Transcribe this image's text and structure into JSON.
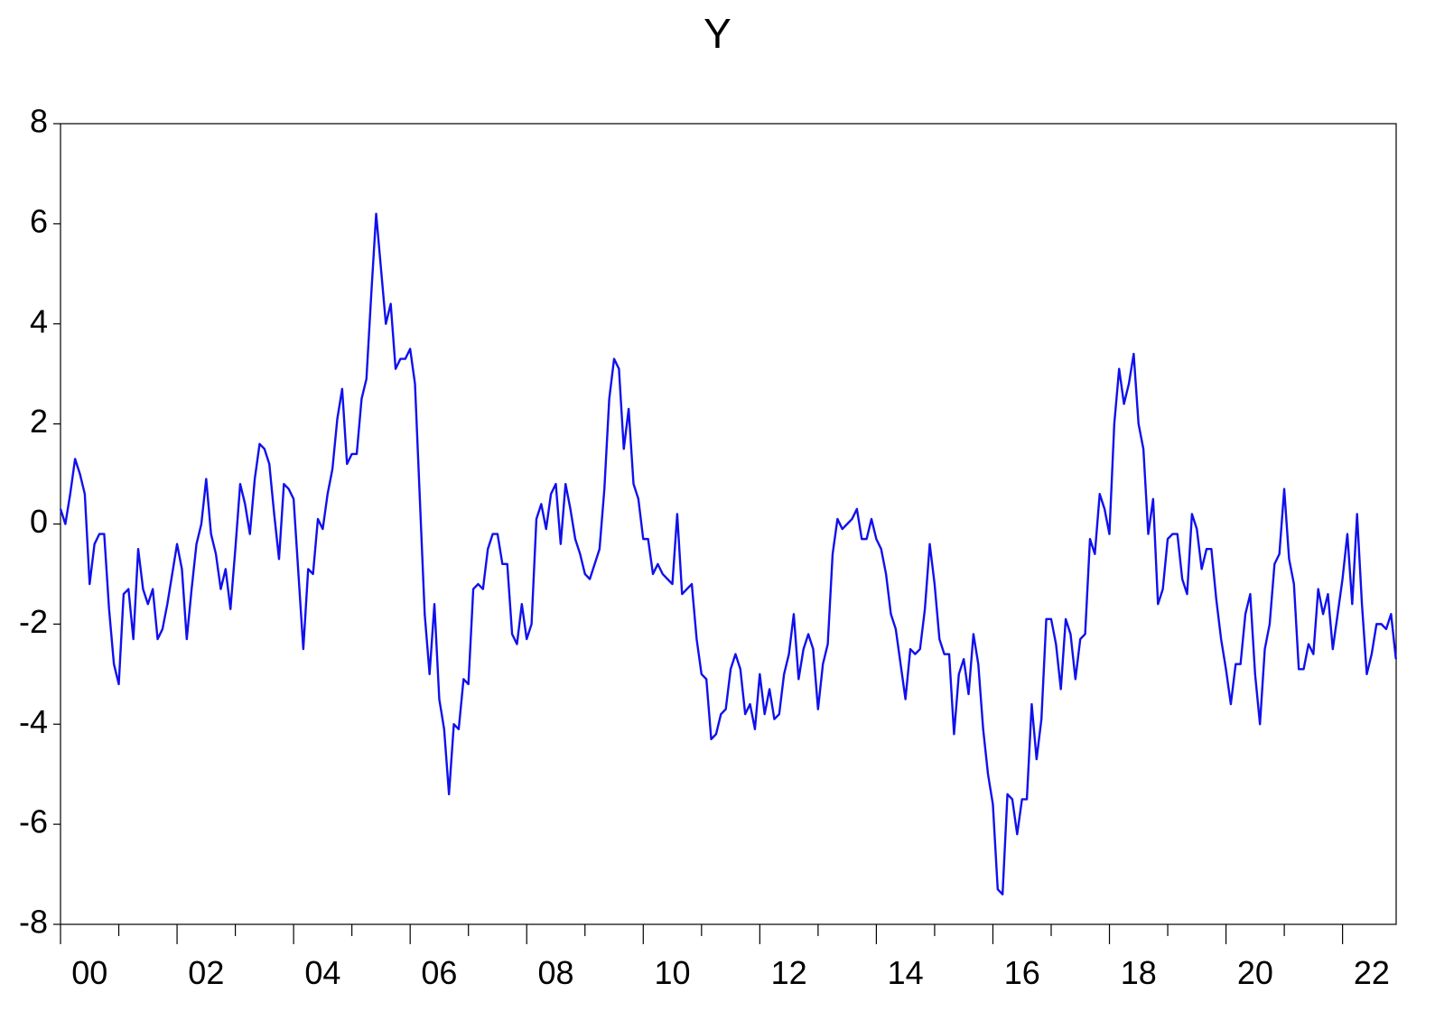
{
  "chart_data": {
    "type": "line",
    "title": "Y",
    "xlabel": "",
    "ylabel": "",
    "line_color": "#1010ee",
    "x_range": [
      2000.0,
      2022.92
    ],
    "ylim": [
      -8,
      8
    ],
    "y_ticks": [
      -8,
      -6,
      -4,
      -2,
      0,
      2,
      4,
      6,
      8
    ],
    "x_tick_labels": [
      {
        "x": 2000,
        "label": "00"
      },
      {
        "x": 2002,
        "label": "02"
      },
      {
        "x": 2004,
        "label": "04"
      },
      {
        "x": 2006,
        "label": "06"
      },
      {
        "x": 2008,
        "label": "08"
      },
      {
        "x": 2010,
        "label": "10"
      },
      {
        "x": 2012,
        "label": "12"
      },
      {
        "x": 2014,
        "label": "14"
      },
      {
        "x": 2016,
        "label": "16"
      },
      {
        "x": 2018,
        "label": "18"
      },
      {
        "x": 2020,
        "label": "20"
      },
      {
        "x": 2022,
        "label": "22"
      }
    ],
    "grid": false,
    "legend": "none",
    "series": [
      {
        "x_start": 2000.0,
        "x_step": 0.08333,
        "values": [
          0.3,
          0.0,
          0.6,
          1.3,
          1.0,
          0.6,
          -1.2,
          -0.4,
          -0.2,
          -0.2,
          -1.7,
          -2.8,
          -3.2,
          -1.4,
          -1.3,
          -2.3,
          -0.5,
          -1.3,
          -1.6,
          -1.3,
          -2.3,
          -2.1,
          -1.6,
          -1.0,
          -0.4,
          -0.9,
          -2.3,
          -1.3,
          -0.4,
          0.0,
          0.9,
          -0.2,
          -0.6,
          -1.3,
          -0.9,
          -1.7,
          -0.5,
          0.8,
          0.4,
          -0.2,
          0.9,
          1.6,
          1.5,
          1.2,
          0.2,
          -0.7,
          0.8,
          0.7,
          0.5,
          -1.0,
          -2.5,
          -0.9,
          -1.0,
          0.1,
          -0.1,
          0.6,
          1.1,
          2.1,
          2.7,
          1.2,
          1.4,
          1.4,
          2.5,
          2.9,
          4.6,
          6.2,
          5.1,
          4.0,
          4.4,
          3.1,
          3.3,
          3.3,
          3.5,
          2.8,
          0.5,
          -1.8,
          -3.0,
          -1.6,
          -3.5,
          -4.1,
          -5.4,
          -4.0,
          -4.1,
          -3.1,
          -3.2,
          -1.3,
          -1.2,
          -1.3,
          -0.5,
          -0.2,
          -0.2,
          -0.8,
          -0.8,
          -2.2,
          -2.4,
          -1.6,
          -2.3,
          -2.0,
          0.1,
          0.4,
          -0.1,
          0.6,
          0.8,
          -0.4,
          0.8,
          0.3,
          -0.3,
          -0.6,
          -1.0,
          -1.1,
          -0.8,
          -0.5,
          0.7,
          2.5,
          3.3,
          3.1,
          1.5,
          2.3,
          0.8,
          0.5,
          -0.3,
          -0.3,
          -1.0,
          -0.8,
          -1.0,
          -1.1,
          -1.2,
          0.2,
          -1.4,
          -1.3,
          -1.2,
          -2.3,
          -3.0,
          -3.1,
          -4.3,
          -4.2,
          -3.8,
          -3.7,
          -2.9,
          -2.6,
          -2.9,
          -3.8,
          -3.6,
          -4.1,
          -3.0,
          -3.8,
          -3.3,
          -3.9,
          -3.8,
          -3.0,
          -2.6,
          -1.8,
          -3.1,
          -2.5,
          -2.2,
          -2.5,
          -3.7,
          -2.8,
          -2.4,
          -0.6,
          0.1,
          -0.1,
          0.0,
          0.1,
          0.3,
          -0.3,
          -0.3,
          0.1,
          -0.3,
          -0.5,
          -1.0,
          -1.8,
          -2.1,
          -2.8,
          -3.5,
          -2.5,
          -2.6,
          -2.5,
          -1.7,
          -0.4,
          -1.2,
          -2.3,
          -2.6,
          -2.6,
          -4.2,
          -3.0,
          -2.7,
          -3.4,
          -2.2,
          -2.8,
          -4.1,
          -5.0,
          -5.6,
          -7.3,
          -7.4,
          -5.4,
          -5.5,
          -6.2,
          -5.5,
          -5.5,
          -3.6,
          -4.7,
          -3.9,
          -1.9,
          -1.9,
          -2.4,
          -3.3,
          -1.9,
          -2.2,
          -3.1,
          -2.3,
          -2.2,
          -0.3,
          -0.6,
          0.6,
          0.3,
          -0.2,
          2.0,
          3.1,
          2.4,
          2.8,
          3.4,
          2.0,
          1.5,
          -0.2,
          0.5,
          -1.6,
          -1.3,
          -0.3,
          -0.2,
          -0.2,
          -1.1,
          -1.4,
          0.2,
          -0.1,
          -0.9,
          -0.5,
          -0.5,
          -1.5,
          -2.3,
          -2.9,
          -3.6,
          -2.8,
          -2.8,
          -1.8,
          -1.4,
          -3.0,
          -4.0,
          -2.5,
          -2.0,
          -0.8,
          -0.6,
          0.7,
          -0.7,
          -1.2,
          -2.9,
          -2.9,
          -2.4,
          -2.6,
          -1.3,
          -1.8,
          -1.4,
          -2.5,
          -1.8,
          -1.1,
          -0.2,
          -1.6,
          0.2,
          -1.6,
          -3.0,
          -2.6,
          -2.0,
          -2.0,
          -2.1,
          -1.8,
          -2.7
        ]
      }
    ]
  }
}
